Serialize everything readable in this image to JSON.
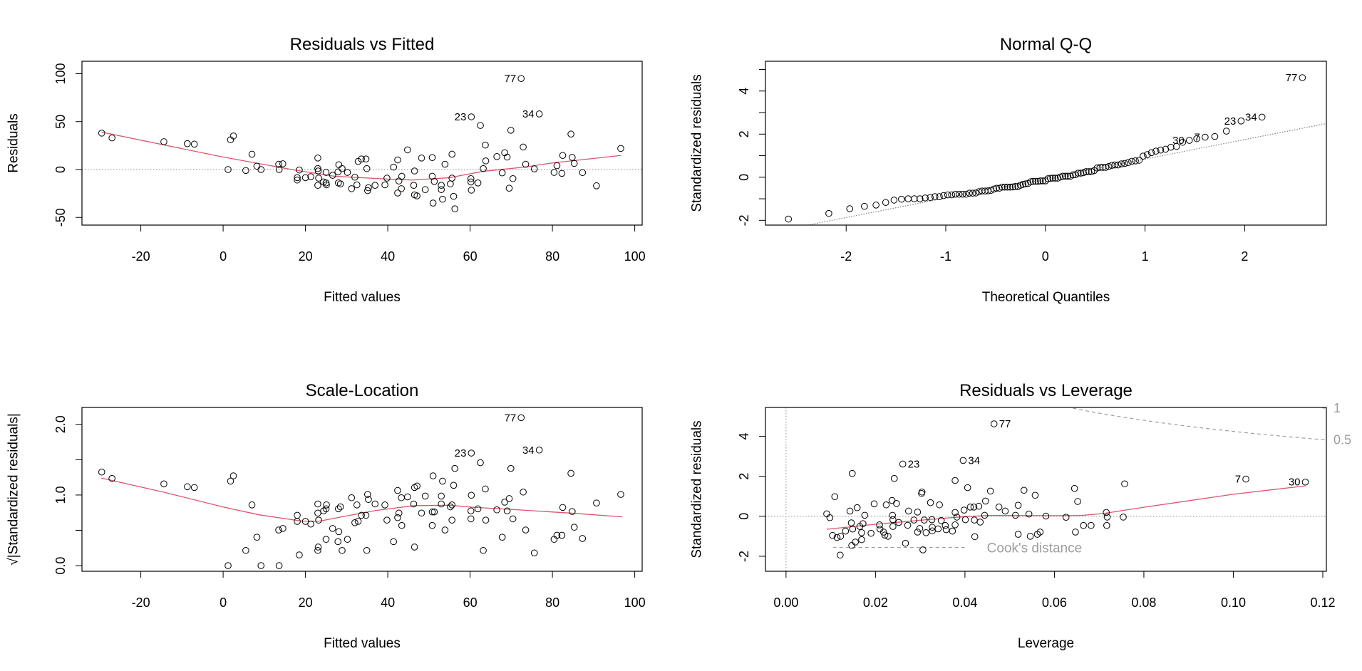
{
  "colors": {
    "points": "#000000",
    "smooth": "#DF536B",
    "reference": "#a0a0a0",
    "cook": "#9e9e9e"
  },
  "chart_data": [
    {
      "type": "scatter",
      "title": "Residuals vs Fitted",
      "xlabel": "Fitted values",
      "ylabel": "Residuals",
      "xlim": [
        -34.3,
        101.8
      ],
      "ylim": [
        -58,
        113
      ],
      "xticks": [
        -20,
        0,
        20,
        40,
        60,
        80,
        100
      ],
      "xtick_labels": [
        "-20",
        "0",
        "20",
        "40",
        "60",
        "80",
        "100"
      ],
      "yticks": [
        -50,
        0,
        50,
        100
      ],
      "ytick_labels": [
        "-50",
        "0",
        "50",
        "100"
      ],
      "reference_hline": 0,
      "points": [
        [
          -29.5,
          38
        ],
        [
          -27,
          33
        ],
        [
          -14.4,
          29
        ],
        [
          -8.7,
          27
        ],
        [
          -7,
          26.5
        ],
        [
          1.2,
          0
        ],
        [
          1.8,
          31
        ],
        [
          2.5,
          35
        ],
        [
          5.5,
          -1
        ],
        [
          7,
          16
        ],
        [
          8.2,
          3.5
        ],
        [
          9.2,
          0
        ],
        [
          13.5,
          5.5
        ],
        [
          13.6,
          0
        ],
        [
          14.5,
          6
        ],
        [
          18.5,
          -0.5
        ],
        [
          18,
          -8.5
        ],
        [
          18,
          -11
        ],
        [
          20,
          -8.5
        ],
        [
          21.3,
          -7.5
        ],
        [
          23,
          12
        ],
        [
          23,
          1
        ],
        [
          23.1,
          -1.5
        ],
        [
          23.2,
          -9
        ],
        [
          23,
          -16.5
        ],
        [
          24.4,
          -13
        ],
        [
          25,
          -3
        ],
        [
          25,
          -14
        ],
        [
          25.1,
          -16
        ],
        [
          26.6,
          -6
        ],
        [
          27.9,
          -2.5
        ],
        [
          28.1,
          5
        ],
        [
          28.9,
          1
        ],
        [
          28,
          -14
        ],
        [
          28.5,
          -15
        ],
        [
          30.2,
          -3
        ],
        [
          31.2,
          -20
        ],
        [
          32,
          -8
        ],
        [
          32.5,
          -16
        ],
        [
          32.8,
          8.5
        ],
        [
          33.6,
          11
        ],
        [
          34.7,
          11
        ],
        [
          34.9,
          1
        ],
        [
          35.1,
          -22
        ],
        [
          35.3,
          -19
        ],
        [
          36.9,
          -16.5
        ],
        [
          39.3,
          -16
        ],
        [
          39.8,
          -9
        ],
        [
          41.4,
          2.5
        ],
        [
          42.4,
          10
        ],
        [
          42.7,
          -12
        ],
        [
          43.4,
          -7
        ],
        [
          43.3,
          -20
        ],
        [
          42.4,
          -24.5
        ],
        [
          44.8,
          20.5
        ],
        [
          46.3,
          -16.5
        ],
        [
          46.5,
          -1.5
        ],
        [
          46.5,
          -26.5
        ],
        [
          47.1,
          -27.5
        ],
        [
          48.2,
          12
        ],
        [
          49.1,
          -21
        ],
        [
          50.8,
          12.5
        ],
        [
          50.8,
          -7
        ],
        [
          51.3,
          -12.5
        ],
        [
          51,
          -35
        ],
        [
          53,
          -16.5
        ],
        [
          53,
          -21
        ],
        [
          53.3,
          -31
        ],
        [
          53.9,
          5.5
        ],
        [
          55.2,
          -15
        ],
        [
          55.6,
          16
        ],
        [
          55.6,
          -9
        ],
        [
          56,
          -28
        ],
        [
          56.3,
          -41
        ],
        [
          60.2,
          -9.5
        ],
        [
          60.2,
          -13
        ],
        [
          60.3,
          -21.5
        ],
        [
          60.3,
          55,
          "23"
        ],
        [
          61.9,
          -14
        ],
        [
          62.5,
          46
        ],
        [
          63.2,
          1
        ],
        [
          63.7,
          25.5
        ],
        [
          63.8,
          9
        ],
        [
          66.5,
          13.5
        ],
        [
          67.8,
          -3.5
        ],
        [
          68.4,
          17.5
        ],
        [
          69,
          13
        ],
        [
          69.5,
          -19.5
        ],
        [
          69.9,
          41
        ],
        [
          70.4,
          -9.5
        ],
        [
          72.4,
          95,
          "77"
        ],
        [
          72.9,
          23.5
        ],
        [
          73.5,
          5.5
        ],
        [
          75.6,
          0.7
        ],
        [
          76.8,
          58,
          "34"
        ],
        [
          80.4,
          -3
        ],
        [
          81.1,
          4
        ],
        [
          82.3,
          -4
        ],
        [
          82.5,
          14.7
        ],
        [
          84.5,
          37
        ],
        [
          84.8,
          12.7
        ],
        [
          85.3,
          6.4
        ],
        [
          87.3,
          -3.2
        ],
        [
          90.7,
          -17
        ],
        [
          96.6,
          22
        ]
      ],
      "smooth": [
        [
          -29.5,
          39
        ],
        [
          0,
          13
        ],
        [
          18,
          -1
        ],
        [
          27,
          -7
        ],
        [
          40,
          -10
        ],
        [
          46,
          -11
        ],
        [
          55,
          -8.5
        ],
        [
          63,
          -2
        ],
        [
          73.5,
          2.7
        ],
        [
          80,
          6.9
        ],
        [
          96.6,
          14.7
        ]
      ]
    },
    {
      "type": "scatter",
      "title": "Normal Q-Q",
      "xlabel": "Theoretical Quantiles",
      "ylabel": "Standardized residuals",
      "xlim": [
        -2.81,
        2.82
      ],
      "ylim": [
        -2.22,
        5.38
      ],
      "xticks": [
        -2,
        -1,
        0,
        1,
        2
      ],
      "xtick_labels": [
        "-2",
        "-1",
        "0",
        "1",
        "2"
      ],
      "yticks": [
        -2,
        -1,
        0,
        1,
        2,
        3,
        4,
        5
      ],
      "ytick_labels": [
        "-2",
        "",
        "0",
        "",
        "2",
        "",
        "4",
        ""
      ],
      "sample": "standardized residuals of chart 4, sorted",
      "reference_line": "qqline"
    },
    {
      "type": "scatter",
      "title": "Scale-Location",
      "xlabel": "Fitted values",
      "ylabel": "√|Standardized residuals|",
      "xlim": [
        -34.3,
        101.8
      ],
      "ylim": [
        -0.08,
        2.24
      ],
      "xticks": [
        -20,
        0,
        20,
        40,
        60,
        80,
        100
      ],
      "xtick_labels": [
        "-20",
        "0",
        "20",
        "40",
        "60",
        "80",
        "100"
      ],
      "yticks": [
        0,
        0.5,
        1,
        1.5,
        2
      ],
      "ytick_labels": [
        "0.0",
        "",
        "1.0",
        "",
        "2.0"
      ],
      "smooth": [
        [
          -29.6,
          1.24
        ],
        [
          -14.4,
          1.04
        ],
        [
          0,
          0.83
        ],
        [
          8.7,
          0.72
        ],
        [
          19.2,
          0.63
        ],
        [
          23.4,
          0.63
        ],
        [
          29.7,
          0.7
        ],
        [
          37,
          0.78
        ],
        [
          46.5,
          0.85
        ],
        [
          55,
          0.855
        ],
        [
          61,
          0.825
        ],
        [
          71.7,
          0.79
        ],
        [
          85.4,
          0.74
        ],
        [
          97,
          0.69
        ]
      ]
    },
    {
      "type": "scatter",
      "title": "Residuals vs Leverage",
      "xlabel": "Leverage",
      "ylabel": "Standardized residuals",
      "xlim": [
        -0.0046,
        0.1208
      ],
      "ylim": [
        -2.75,
        5.44
      ],
      "xticks": [
        0,
        0.02,
        0.04,
        0.06,
        0.08,
        0.1,
        0.12
      ],
      "xtick_labels": [
        "0.00",
        "0.02",
        "0.04",
        "0.06",
        "0.08",
        "0.10",
        "0.12"
      ],
      "yticks": [
        -2,
        0,
        2,
        4
      ],
      "ytick_labels": [
        "-2",
        "0",
        "2",
        "4"
      ],
      "reference_hline": 0,
      "reference_vline": 0,
      "cook_legend": "Cook's distance",
      "cook_levels": [
        0.5,
        1
      ],
      "cook_level_labels": [
        "0.5",
        "1"
      ],
      "model_params": 4,
      "points": [
        [
          0.0091,
          0.12
        ],
        [
          0.0098,
          -0.07
        ],
        [
          0.0109,
          0.98
        ],
        [
          0.0104,
          -0.96
        ],
        [
          0.0114,
          -1.06
        ],
        [
          0.0122,
          -1.0
        ],
        [
          0.0121,
          -1.94
        ],
        [
          0.0133,
          -0.74
        ],
        [
          0.0143,
          0.26
        ],
        [
          0.0146,
          -0.33
        ],
        [
          0.0148,
          2.14
        ],
        [
          0.0149,
          -0.64
        ],
        [
          0.0147,
          -1.46
        ],
        [
          0.0155,
          -1.29
        ],
        [
          0.0159,
          0.43
        ],
        [
          0.0165,
          -0.51
        ],
        [
          0.0169,
          -0.82
        ],
        [
          0.0169,
          -1.17
        ],
        [
          0.0172,
          -0.37
        ],
        [
          0.0176,
          0.05
        ],
        [
          0.019,
          -0.85
        ],
        [
          0.0197,
          0.62
        ],
        [
          0.0209,
          -0.43
        ],
        [
          0.021,
          -0.64
        ],
        [
          0.0218,
          -0.79
        ],
        [
          0.0221,
          -0.94
        ],
        [
          0.0228,
          -1.0
        ],
        [
          0.0224,
          0.57
        ],
        [
          0.0237,
          0.79
        ],
        [
          0.0238,
          0.05
        ],
        [
          0.0239,
          -0.17
        ],
        [
          0.0239,
          -0.51
        ],
        [
          0.0242,
          1.89
        ],
        [
          0.0247,
          0.64
        ],
        [
          0.0252,
          -0.31
        ],
        [
          0.0261,
          2.61,
          "23"
        ],
        [
          0.0267,
          -1.35
        ],
        [
          0.0272,
          -0.45
        ],
        [
          0.0274,
          0.26
        ],
        [
          0.0286,
          -0.19
        ],
        [
          0.0294,
          0.21
        ],
        [
          0.0294,
          -0.79
        ],
        [
          0.0299,
          -0.61
        ],
        [
          0.0303,
          1.14
        ],
        [
          0.0304,
          1.21
        ],
        [
          0.0306,
          -1.68
        ],
        [
          0.0309,
          -0.19
        ],
        [
          0.0313,
          -0.82
        ],
        [
          0.0323,
          0.68
        ],
        [
          0.0326,
          -0.17
        ],
        [
          0.0327,
          -0.55
        ],
        [
          0.0327,
          -0.73
        ],
        [
          0.034,
          -0.63
        ],
        [
          0.0343,
          0.57
        ],
        [
          0.0347,
          -0.21
        ],
        [
          0.0356,
          -0.46
        ],
        [
          0.0358,
          -0.67
        ],
        [
          0.0372,
          -0.74
        ],
        [
          0.0378,
          1.79
        ],
        [
          0.0378,
          0.19
        ],
        [
          0.0378,
          -0.43
        ],
        [
          0.0382,
          -0.04
        ],
        [
          0.0396,
          2.79,
          "34"
        ],
        [
          0.0398,
          0.31
        ],
        [
          0.0401,
          -0.17
        ],
        [
          0.0406,
          1.43
        ],
        [
          0.0412,
          0.46
        ],
        [
          0.042,
          0.46
        ],
        [
          0.0421,
          -0.19
        ],
        [
          0.0422,
          -1.02
        ],
        [
          0.0431,
          0.5
        ],
        [
          0.0434,
          -0.29
        ],
        [
          0.0444,
          0.05
        ],
        [
          0.0446,
          0.76
        ],
        [
          0.0457,
          1.26
        ],
        [
          0.0465,
          4.62,
          "77"
        ],
        [
          0.0476,
          0.46
        ],
        [
          0.049,
          0.26
        ],
        [
          0.0513,
          0.05
        ],
        [
          0.0519,
          0.55
        ],
        [
          0.0519,
          -0.9
        ],
        [
          0.0532,
          1.3
        ],
        [
          0.0543,
          0.11
        ],
        [
          0.0546,
          -1.0
        ],
        [
          0.0557,
          1.05
        ],
        [
          0.0562,
          -0.9
        ],
        [
          0.0568,
          -0.79
        ],
        [
          0.0581,
          0.01
        ],
        [
          0.0626,
          -0.05
        ],
        [
          0.0645,
          1.39
        ],
        [
          0.0652,
          0.74
        ],
        [
          0.0647,
          -0.79
        ],
        [
          0.0665,
          -0.46
        ],
        [
          0.0682,
          -0.46
        ],
        [
          0.0716,
          0.19
        ],
        [
          0.0718,
          -0.04
        ],
        [
          0.0717,
          -0.46
        ],
        [
          0.0754,
          -0.04
        ],
        [
          0.0757,
          1.62
        ],
        [
          0.1028,
          1.86,
          "7"
        ],
        [
          0.1161,
          1.71,
          "30"
        ]
      ],
      "smooth": [
        [
          0.0091,
          -0.65
        ],
        [
          0.02,
          -0.4
        ],
        [
          0.03,
          -0.2
        ],
        [
          0.038,
          -0.05
        ],
        [
          0.045,
          0.04
        ],
        [
          0.06,
          0.03
        ],
        [
          0.066,
          0.04
        ],
        [
          0.071,
          0.14
        ],
        [
          0.08,
          0.45
        ],
        [
          0.1,
          1.1
        ],
        [
          0.1161,
          1.52
        ]
      ]
    }
  ]
}
